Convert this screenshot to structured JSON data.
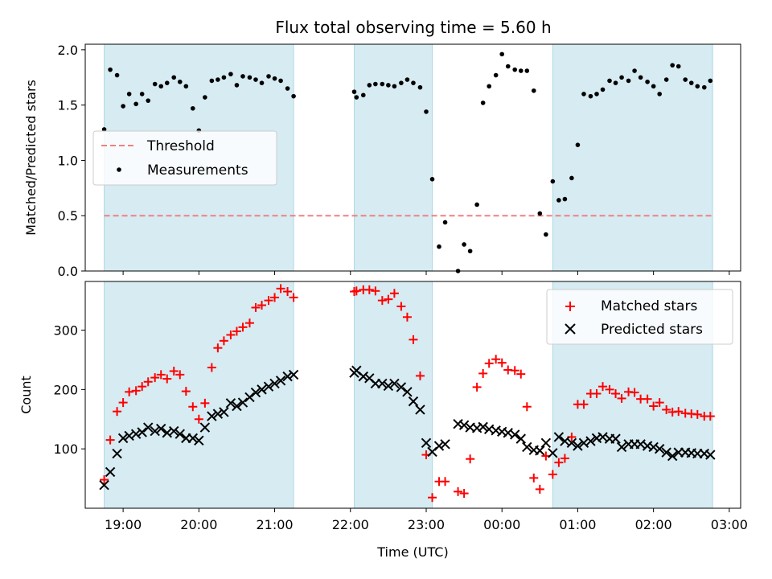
{
  "title": "Flux total observing time = 5.60 h",
  "chart_data": [
    {
      "type": "scatter",
      "panel": "top",
      "ylabel": "Matched/Predicted stars",
      "xlabel": "",
      "xlim": [
        18.5,
        27.15
      ],
      "ylim": [
        0.0,
        2.05
      ],
      "yticks": [
        0.0,
        0.5,
        1.0,
        1.5,
        2.0
      ],
      "ytick_labels": [
        "0.0",
        "0.5",
        "1.0",
        "1.5",
        "2.0"
      ],
      "legend_position": "center-left",
      "threshold": {
        "name": "Threshold",
        "value": 0.5,
        "x_range": [
          18.75,
          26.78
        ],
        "color": "#f08080"
      },
      "series": [
        {
          "name": "Measurements",
          "color": "#000000",
          "x": [
            18.75,
            18.83,
            18.92,
            19.0,
            19.08,
            19.17,
            19.25,
            19.33,
            19.42,
            19.5,
            19.58,
            19.67,
            19.75,
            19.83,
            19.92,
            20.0,
            20.08,
            20.17,
            20.25,
            20.33,
            20.42,
            20.5,
            20.58,
            20.67,
            20.75,
            20.83,
            20.92,
            21.0,
            21.08,
            21.17,
            21.25,
            22.05,
            22.08,
            22.17,
            22.25,
            22.33,
            22.42,
            22.5,
            22.58,
            22.67,
            22.75,
            22.83,
            22.92,
            23.0,
            23.08,
            23.17,
            23.25,
            23.42,
            23.5,
            23.58,
            23.67,
            23.75,
            23.83,
            23.92,
            24.0,
            24.08,
            24.17,
            24.25,
            24.33,
            24.42,
            24.5,
            24.58,
            24.67,
            24.75,
            24.83,
            24.92,
            25.0,
            25.08,
            25.17,
            25.25,
            25.33,
            25.42,
            25.5,
            25.58,
            25.67,
            25.75,
            25.83,
            25.92,
            26.0,
            26.08,
            26.17,
            26.25,
            26.33,
            26.42,
            26.5,
            26.58,
            26.67,
            26.75
          ],
          "y": [
            1.28,
            1.82,
            1.77,
            1.49,
            1.6,
            1.51,
            1.6,
            1.54,
            1.69,
            1.67,
            1.7,
            1.75,
            1.71,
            1.67,
            1.47,
            1.27,
            1.57,
            1.72,
            1.73,
            1.75,
            1.78,
            1.68,
            1.76,
            1.75,
            1.73,
            1.7,
            1.76,
            1.74,
            1.72,
            1.65,
            1.58,
            1.62,
            1.57,
            1.59,
            1.68,
            1.69,
            1.69,
            1.68,
            1.67,
            1.7,
            1.73,
            1.7,
            1.66,
            1.44,
            0.83,
            0.22,
            0.44,
            0.0,
            0.24,
            0.18,
            0.6,
            1.52,
            1.67,
            1.77,
            1.96,
            1.85,
            1.82,
            1.81,
            1.81,
            1.63,
            0.52,
            0.33,
            0.81,
            0.64,
            0.65,
            0.84,
            1.14,
            1.6,
            1.58,
            1.6,
            1.64,
            1.72,
            1.7,
            1.75,
            1.72,
            1.81,
            1.75,
            1.71,
            1.67,
            1.6,
            1.73,
            1.86,
            1.85,
            1.73,
            1.7,
            1.67,
            1.66,
            1.72
          ]
        }
      ]
    },
    {
      "type": "scatter",
      "panel": "bottom",
      "ylabel": "Count",
      "xlabel": "Time (UTC)",
      "xlim": [
        18.5,
        27.15
      ],
      "ylim": [
        0,
        382
      ],
      "yticks": [
        100,
        200,
        300
      ],
      "ytick_labels": [
        "100",
        "200",
        "300"
      ],
      "x_ticks": [
        19,
        20,
        21,
        22,
        23,
        24,
        25,
        26,
        27
      ],
      "x_tick_labels": [
        "19:00",
        "20:00",
        "21:00",
        "22:00",
        "23:00",
        "00:00",
        "01:00",
        "02:00",
        "03:00"
      ],
      "legend_position": "upper-right",
      "series": [
        {
          "name": "Matched stars",
          "marker": "+",
          "color": "#ff0000",
          "x": [
            18.75,
            18.83,
            18.92,
            19.0,
            19.08,
            19.17,
            19.25,
            19.33,
            19.42,
            19.5,
            19.58,
            19.67,
            19.75,
            19.83,
            19.92,
            20.0,
            20.08,
            20.17,
            20.25,
            20.33,
            20.42,
            20.5,
            20.58,
            20.67,
            20.75,
            20.83,
            20.92,
            21.0,
            21.08,
            21.17,
            21.25,
            22.05,
            22.08,
            22.17,
            22.25,
            22.33,
            22.42,
            22.5,
            22.58,
            22.67,
            22.75,
            22.83,
            22.92,
            23.0,
            23.08,
            23.17,
            23.25,
            23.42,
            23.5,
            23.58,
            23.67,
            23.75,
            23.83,
            23.92,
            24.0,
            24.08,
            24.17,
            24.25,
            24.33,
            24.42,
            24.5,
            24.58,
            24.67,
            24.75,
            24.83,
            24.92,
            25.0,
            25.08,
            25.17,
            25.25,
            25.33,
            25.42,
            25.5,
            25.58,
            25.67,
            25.75,
            25.83,
            25.92,
            26.0,
            26.08,
            26.17,
            26.25,
            26.33,
            26.42,
            26.5,
            26.58,
            26.67,
            26.75
          ],
          "y": [
            48,
            115,
            163,
            178,
            196,
            198,
            205,
            213,
            220,
            225,
            218,
            231,
            225,
            197,
            171,
            150,
            177,
            237,
            270,
            282,
            292,
            298,
            305,
            312,
            338,
            342,
            350,
            355,
            370,
            365,
            355,
            365,
            366,
            368,
            368,
            366,
            350,
            352,
            362,
            340,
            322,
            284,
            223,
            90,
            18,
            45,
            45,
            28,
            25,
            83,
            204,
            227,
            244,
            251,
            245,
            233,
            232,
            226,
            171,
            51,
            32,
            88,
            57,
            77,
            84,
            120,
            175,
            175,
            193,
            193,
            205,
            200,
            193,
            185,
            196,
            195,
            184,
            184,
            172,
            178,
            166,
            162,
            163,
            160,
            159,
            158,
            155,
            155
          ]
        },
        {
          "name": "Predicted stars",
          "marker": "x",
          "color": "#000000",
          "x": [
            18.75,
            18.83,
            18.92,
            19.0,
            19.08,
            19.17,
            19.25,
            19.33,
            19.42,
            19.5,
            19.58,
            19.67,
            19.75,
            19.83,
            19.92,
            20.0,
            20.08,
            20.17,
            20.25,
            20.33,
            20.42,
            20.5,
            20.58,
            20.67,
            20.75,
            20.83,
            20.92,
            21.0,
            21.08,
            21.17,
            21.25,
            22.05,
            22.08,
            22.17,
            22.25,
            22.33,
            22.42,
            22.5,
            22.58,
            22.67,
            22.75,
            22.83,
            22.92,
            23.0,
            23.08,
            23.17,
            23.25,
            23.42,
            23.5,
            23.58,
            23.67,
            23.75,
            23.83,
            23.92,
            24.0,
            24.08,
            24.17,
            24.25,
            24.33,
            24.42,
            24.5,
            24.58,
            24.67,
            24.75,
            24.83,
            24.92,
            25.0,
            25.08,
            25.17,
            25.25,
            25.33,
            25.42,
            25.5,
            25.58,
            25.67,
            25.75,
            25.83,
            25.92,
            26.0,
            26.08,
            26.17,
            26.25,
            26.33,
            26.42,
            26.5,
            26.58,
            26.67,
            26.75
          ],
          "y": [
            39,
            61,
            92,
            118,
            122,
            125,
            128,
            136,
            130,
            134,
            127,
            130,
            125,
            118,
            118,
            114,
            136,
            155,
            159,
            162,
            177,
            172,
            178,
            187,
            195,
            200,
            205,
            210,
            215,
            222,
            225,
            228,
            232,
            222,
            219,
            210,
            210,
            206,
            210,
            204,
            196,
            180,
            166,
            110,
            95,
            105,
            108,
            142,
            140,
            136,
            135,
            137,
            133,
            131,
            129,
            127,
            124,
            117,
            103,
            98,
            97,
            110,
            93,
            120,
            113,
            110,
            105,
            110,
            113,
            118,
            120,
            117,
            117,
            103,
            108,
            108,
            108,
            105,
            103,
            100,
            94,
            88,
            94,
            94,
            93,
            92,
            92,
            90
          ]
        }
      ]
    }
  ]
}
